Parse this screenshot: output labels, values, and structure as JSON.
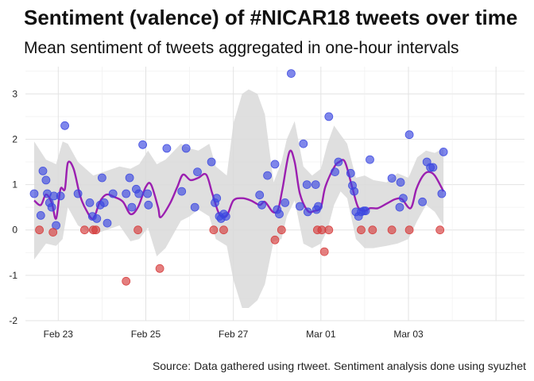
{
  "chart_data": {
    "type": "scatter",
    "title": "Sentiment (valence) of #NICAR18 tweets over time",
    "subtitle": "Mean sentiment of tweets aggregated in one-hour intervals",
    "caption": "Source: Data gathered using rtweet. Sentiment analysis done using syuzhet",
    "xlabel": "",
    "ylabel": "",
    "x_unit": "days",
    "xlim": [
      -0.75,
      10.65
    ],
    "ylim": [
      -2,
      3.6
    ],
    "x_ticks": [
      {
        "value": 0,
        "label": "Feb 23"
      },
      {
        "value": 2,
        "label": "Feb 25"
      },
      {
        "value": 4,
        "label": "Feb 27"
      },
      {
        "value": 6,
        "label": "Mar 01"
      },
      {
        "value": 8,
        "label": "Mar 03"
      }
    ],
    "y_ticks": [
      -2,
      -1,
      0,
      1,
      2,
      3
    ],
    "grid": true,
    "legend": "none",
    "colors": {
      "positive": "#3b47e0",
      "negative": "#d63a3a",
      "trend": "#9b1fb0",
      "band": "#d9d9d9"
    },
    "series": [
      {
        "role": "positive",
        "points": [
          [
            -0.55,
            0.8
          ],
          [
            -0.4,
            0.32
          ],
          [
            -0.35,
            1.3
          ],
          [
            -0.28,
            1.1
          ],
          [
            -0.25,
            0.8
          ],
          [
            -0.2,
            0.6
          ],
          [
            -0.15,
            0.5
          ],
          [
            -0.1,
            0.75
          ],
          [
            -0.05,
            0.1
          ],
          [
            0.05,
            0.75
          ],
          [
            0.15,
            2.3
          ],
          [
            0.45,
            0.8
          ],
          [
            0.72,
            0.6
          ],
          [
            0.78,
            0.3
          ],
          [
            0.88,
            0.25
          ],
          [
            0.96,
            0.55
          ],
          [
            1.0,
            1.15
          ],
          [
            1.05,
            0.6
          ],
          [
            1.12,
            0.15
          ],
          [
            1.25,
            0.8
          ],
          [
            1.55,
            0.8
          ],
          [
            1.63,
            1.15
          ],
          [
            1.68,
            0.5
          ],
          [
            1.78,
            0.9
          ],
          [
            1.84,
            0.8
          ],
          [
            1.93,
            1.88
          ],
          [
            2.04,
            0.8
          ],
          [
            2.06,
            0.55
          ],
          [
            2.48,
            1.8
          ],
          [
            2.82,
            0.85
          ],
          [
            2.92,
            1.8
          ],
          [
            3.12,
            0.5
          ],
          [
            3.18,
            1.28
          ],
          [
            3.5,
            1.5
          ],
          [
            3.58,
            0.6
          ],
          [
            3.62,
            0.7
          ],
          [
            3.68,
            0.3
          ],
          [
            3.72,
            0.25
          ],
          [
            3.78,
            0.35
          ],
          [
            3.83,
            0.3
          ],
          [
            4.6,
            0.77
          ],
          [
            4.65,
            0.55
          ],
          [
            4.78,
            1.2
          ],
          [
            4.95,
            1.45
          ],
          [
            5.0,
            0.45
          ],
          [
            5.05,
            0.35
          ],
          [
            5.18,
            0.6
          ],
          [
            5.32,
            3.45
          ],
          [
            5.52,
            0.52
          ],
          [
            5.6,
            1.9
          ],
          [
            5.68,
            1.0
          ],
          [
            5.7,
            0.4
          ],
          [
            5.88,
            1.0
          ],
          [
            5.9,
            0.45
          ],
          [
            5.94,
            0.52
          ],
          [
            6.18,
            2.5
          ],
          [
            6.4,
            1.5
          ],
          [
            6.32,
            1.28
          ],
          [
            6.68,
            1.25
          ],
          [
            6.72,
            0.98
          ],
          [
            6.76,
            0.85
          ],
          [
            6.8,
            0.4
          ],
          [
            6.86,
            0.3
          ],
          [
            6.92,
            0.4
          ],
          [
            6.98,
            0.42
          ],
          [
            7.02,
            0.42
          ],
          [
            7.12,
            1.55
          ],
          [
            7.62,
            1.14
          ],
          [
            7.8,
            0.5
          ],
          [
            7.82,
            1.05
          ],
          [
            7.88,
            0.7
          ],
          [
            8.02,
            2.1
          ],
          [
            8.32,
            0.62
          ],
          [
            8.42,
            1.5
          ],
          [
            8.5,
            1.38
          ],
          [
            8.56,
            1.38
          ],
          [
            8.76,
            0.8
          ],
          [
            8.8,
            1.72
          ]
        ]
      },
      {
        "role": "negative",
        "points": [
          [
            -0.43,
            0.0
          ],
          [
            -0.12,
            -0.05
          ],
          [
            0.6,
            0.0
          ],
          [
            0.8,
            0.0
          ],
          [
            0.86,
            0.0
          ],
          [
            1.55,
            -1.13
          ],
          [
            1.82,
            0.0
          ],
          [
            2.32,
            -0.85
          ],
          [
            3.55,
            0.0
          ],
          [
            3.78,
            0.0
          ],
          [
            4.95,
            -0.22
          ],
          [
            5.1,
            0.0
          ],
          [
            5.92,
            0.0
          ],
          [
            6.02,
            0.0
          ],
          [
            6.08,
            -0.48
          ],
          [
            6.18,
            0.0
          ],
          [
            6.92,
            0.0
          ],
          [
            7.18,
            0.0
          ],
          [
            7.62,
            0.0
          ],
          [
            8.02,
            0.0
          ],
          [
            8.72,
            0.0
          ]
        ]
      }
    ],
    "trend": [
      [
        -0.55,
        0.65
      ],
      [
        -0.4,
        0.55
      ],
      [
        -0.28,
        0.78
      ],
      [
        -0.15,
        0.6
      ],
      [
        -0.05,
        0.25
      ],
      [
        0.05,
        0.9
      ],
      [
        0.15,
        0.9
      ],
      [
        0.22,
        1.48
      ],
      [
        0.35,
        1.35
      ],
      [
        0.5,
        0.75
      ],
      [
        0.65,
        0.42
      ],
      [
        0.8,
        0.25
      ],
      [
        0.95,
        0.62
      ],
      [
        1.1,
        0.78
      ],
      [
        1.3,
        0.72
      ],
      [
        1.48,
        0.62
      ],
      [
        1.65,
        0.35
      ],
      [
        1.82,
        0.5
      ],
      [
        2.0,
        0.95
      ],
      [
        2.12,
        1.0
      ],
      [
        2.28,
        0.5
      ],
      [
        2.34,
        0.28
      ],
      [
        2.55,
        0.58
      ],
      [
        2.72,
        0.95
      ],
      [
        2.85,
        1.22
      ],
      [
        3.02,
        1.1
      ],
      [
        3.2,
        1.15
      ],
      [
        3.38,
        1.22
      ],
      [
        3.52,
        0.8
      ],
      [
        3.68,
        0.35
      ],
      [
        3.85,
        0.32
      ],
      [
        4.0,
        0.65
      ],
      [
        4.2,
        0.7
      ],
      [
        4.4,
        0.65
      ],
      [
        4.6,
        0.55
      ],
      [
        4.72,
        0.62
      ],
      [
        4.9,
        0.4
      ],
      [
        5.02,
        0.45
      ],
      [
        5.12,
        0.9
      ],
      [
        5.28,
        1.72
      ],
      [
        5.4,
        1.5
      ],
      [
        5.52,
        0.8
      ],
      [
        5.7,
        0.42
      ],
      [
        5.85,
        0.42
      ],
      [
        6.0,
        0.5
      ],
      [
        6.1,
        0.95
      ],
      [
        6.3,
        1.38
      ],
      [
        6.42,
        1.5
      ],
      [
        6.55,
        1.5
      ],
      [
        6.72,
        0.92
      ],
      [
        6.85,
        0.5
      ],
      [
        7.0,
        0.42
      ],
      [
        7.12,
        0.48
      ],
      [
        7.3,
        0.48
      ],
      [
        7.5,
        0.58
      ],
      [
        7.7,
        0.68
      ],
      [
        7.85,
        0.68
      ],
      [
        8.05,
        0.48
      ],
      [
        8.18,
        0.9
      ],
      [
        8.32,
        1.18
      ],
      [
        8.45,
        1.28
      ],
      [
        8.6,
        1.2
      ],
      [
        8.8,
        0.85
      ]
    ],
    "band_upper": [
      [
        -0.55,
        1.95
      ],
      [
        -0.28,
        1.55
      ],
      [
        -0.05,
        1.45
      ],
      [
        0.1,
        1.95
      ],
      [
        0.22,
        1.9
      ],
      [
        0.45,
        1.5
      ],
      [
        0.8,
        1.2
      ],
      [
        1.1,
        1.3
      ],
      [
        1.4,
        1.4
      ],
      [
        1.65,
        1.35
      ],
      [
        1.85,
        1.45
      ],
      [
        2.05,
        1.75
      ],
      [
        2.25,
        1.45
      ],
      [
        2.45,
        1.55
      ],
      [
        2.8,
        1.9
      ],
      [
        3.0,
        1.8
      ],
      [
        3.2,
        1.75
      ],
      [
        3.45,
        1.9
      ],
      [
        3.6,
        1.4
      ],
      [
        3.85,
        1.2
      ],
      [
        4.0,
        2.35
      ],
      [
        4.2,
        3.0
      ],
      [
        4.35,
        3.1
      ],
      [
        4.55,
        3.0
      ],
      [
        4.72,
        2.55
      ],
      [
        4.92,
        1.05
      ],
      [
        5.1,
        1.5
      ],
      [
        5.22,
        2.0
      ],
      [
        5.4,
        2.4
      ],
      [
        5.6,
        1.4
      ],
      [
        5.8,
        1.2
      ],
      [
        6.0,
        1.35
      ],
      [
        6.15,
        1.9
      ],
      [
        6.3,
        2.3
      ],
      [
        6.45,
        2.1
      ],
      [
        6.6,
        1.9
      ],
      [
        6.8,
        1.15
      ],
      [
        7.0,
        1.2
      ],
      [
        7.2,
        1.1
      ],
      [
        7.5,
        1.05
      ],
      [
        7.75,
        1.25
      ],
      [
        8.0,
        1.15
      ],
      [
        8.2,
        1.6
      ],
      [
        8.4,
        1.75
      ],
      [
        8.6,
        1.7
      ],
      [
        8.8,
        1.8
      ]
    ],
    "band_lower": [
      [
        -0.55,
        -0.65
      ],
      [
        -0.28,
        -0.3
      ],
      [
        -0.05,
        -0.35
      ],
      [
        0.1,
        -0.2
      ],
      [
        0.22,
        0.5
      ],
      [
        0.45,
        0.1
      ],
      [
        0.8,
        -0.1
      ],
      [
        1.1,
        0.0
      ],
      [
        1.4,
        0.1
      ],
      [
        1.65,
        -0.25
      ],
      [
        1.85,
        -0.2
      ],
      [
        2.05,
        0.05
      ],
      [
        2.25,
        -0.58
      ],
      [
        2.45,
        -0.4
      ],
      [
        2.8,
        0.2
      ],
      [
        3.0,
        0.3
      ],
      [
        3.2,
        0.45
      ],
      [
        3.45,
        0.3
      ],
      [
        3.6,
        -0.2
      ],
      [
        3.85,
        -0.35
      ],
      [
        4.0,
        -1.1
      ],
      [
        4.2,
        -1.72
      ],
      [
        4.35,
        -1.72
      ],
      [
        4.55,
        -1.55
      ],
      [
        4.72,
        -1.2
      ],
      [
        4.92,
        -0.25
      ],
      [
        5.1,
        -0.2
      ],
      [
        5.22,
        0.3
      ],
      [
        5.4,
        0.65
      ],
      [
        5.6,
        -0.3
      ],
      [
        5.8,
        -0.4
      ],
      [
        6.0,
        -0.3
      ],
      [
        6.15,
        0.0
      ],
      [
        6.3,
        0.55
      ],
      [
        6.45,
        0.85
      ],
      [
        6.6,
        0.7
      ],
      [
        6.8,
        -0.2
      ],
      [
        7.0,
        -0.4
      ],
      [
        7.2,
        -0.4
      ],
      [
        7.5,
        -0.35
      ],
      [
        7.75,
        -0.3
      ],
      [
        8.0,
        -0.2
      ],
      [
        8.2,
        0.2
      ],
      [
        8.4,
        0.55
      ],
      [
        8.6,
        0.4
      ],
      [
        8.8,
        0.1
      ]
    ]
  }
}
